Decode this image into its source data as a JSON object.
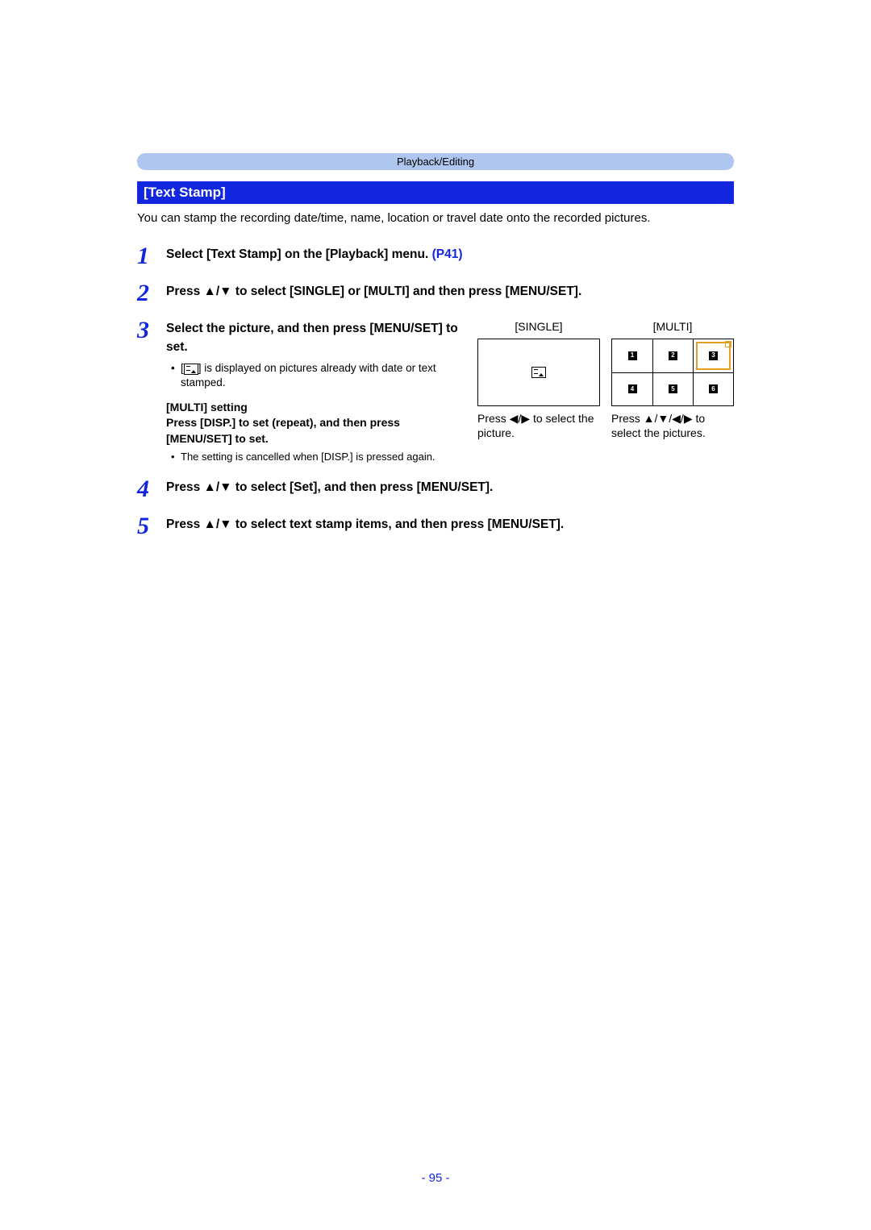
{
  "breadcrumb": "Playback/Editing",
  "section_title": "[Text Stamp]",
  "intro": "You can stamp the recording date/time, name, location or travel date onto the recorded pictures.",
  "steps": {
    "s1": {
      "num": "1",
      "title_prefix": "Select [Text Stamp] on the [Playback] menu. ",
      "link": "(P41)"
    },
    "s2": {
      "num": "2",
      "title": "Press ▲/▼ to select [SINGLE] or [MULTI] and then press [MENU/SET]."
    },
    "s3": {
      "num": "3",
      "title": "Select the picture, and then press [MENU/SET] to set.",
      "bullet_prefix": "[",
      "bullet_after_icon": "] is displayed on pictures already with date or text stamped.",
      "multi_heading": "[MULTI] setting",
      "multi_text": "Press [DISP.] to set (repeat), and then press [MENU/SET] to set.",
      "multi_note": "The setting is cancelled when [DISP.] is pressed again.",
      "fig_single_label": "[SINGLE]",
      "fig_multi_label": "[MULTI]",
      "fig_single_caption": "Press ◀/▶ to select the picture.",
      "fig_multi_caption": "Press ▲/▼/◀/▶ to select the pictures.",
      "thumbs": [
        "1",
        "2",
        "3",
        "4",
        "5",
        "6"
      ],
      "selected_thumb_index": 2
    },
    "s4": {
      "num": "4",
      "title": "Press ▲/▼ to select [Set], and then press [MENU/SET]."
    },
    "s5": {
      "num": "5",
      "title": "Press ▲/▼ to select text stamp items, and then press [MENU/SET]."
    }
  },
  "page_number": "- 95 -",
  "colors": {
    "accent": "#1226e0",
    "breadcrumb_bg": "#afc7ee",
    "selection": "#e0a020"
  }
}
